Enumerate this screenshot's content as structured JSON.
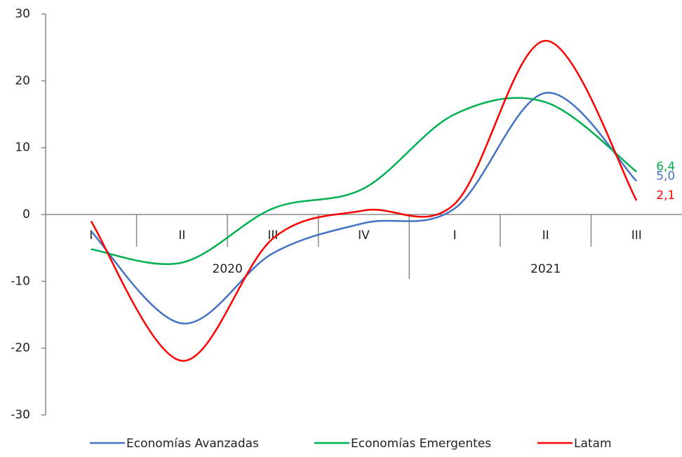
{
  "chart_data": {
    "type": "line",
    "groups": [
      {
        "label": "2020",
        "categories": [
          "I",
          "II",
          "III",
          "IV"
        ]
      },
      {
        "label": "2021",
        "categories": [
          "I",
          "II",
          "III"
        ]
      }
    ],
    "series": [
      {
        "name": "Economías Avanzadas",
        "color": "#4472c4",
        "values": [
          -2.5,
          -16.3,
          -5.8,
          -1.3,
          0.9,
          18.2,
          5.0
        ],
        "value_labels": [
          null,
          null,
          null,
          null,
          null,
          null,
          "5,0"
        ]
      },
      {
        "name": "Economías Emergentes",
        "color": "#00b050",
        "values": [
          -5.2,
          -7.2,
          0.9,
          3.9,
          15.0,
          16.8,
          6.4
        ],
        "value_labels": [
          null,
          null,
          null,
          null,
          null,
          null,
          "6,4"
        ]
      },
      {
        "name": "Latam",
        "color": "#ff0000",
        "values": [
          -1.0,
          -21.9,
          -3.6,
          0.6,
          1.6,
          26.0,
          2.1
        ],
        "value_labels": [
          null,
          null,
          null,
          null,
          null,
          null,
          "2,1"
        ]
      }
    ],
    "ylim": [
      -30,
      30
    ],
    "yticks": [
      -30,
      -20,
      -10,
      0,
      10,
      20,
      30
    ],
    "legend": "bottom"
  }
}
